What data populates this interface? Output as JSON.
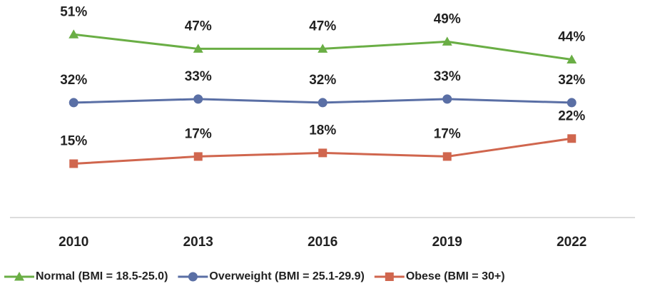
{
  "chart_data": {
    "type": "line",
    "categories": [
      "2010",
      "2013",
      "2016",
      "2019",
      "2022"
    ],
    "series": [
      {
        "name": "Normal (BMI = 18.5-25.0)",
        "color": "#6aae45",
        "marker": "triangle",
        "values": [
          51,
          47,
          47,
          49,
          44
        ],
        "value_labels": [
          "51%",
          "47%",
          "47%",
          "49%",
          "44%"
        ]
      },
      {
        "name": "Overweight (BMI = 25.1-29.9)",
        "color": "#5a6fa5",
        "marker": "circle",
        "values": [
          32,
          33,
          32,
          33,
          32
        ],
        "value_labels": [
          "32%",
          "33%",
          "32%",
          "33%",
          "32%"
        ]
      },
      {
        "name": "Obese (BMI = 30+)",
        "color": "#d0664e",
        "marker": "square",
        "values": [
          15,
          17,
          18,
          17,
          22
        ],
        "value_labels": [
          "15%",
          "17%",
          "18%",
          "17%",
          "22%"
        ]
      }
    ],
    "ylim": [
      0,
      60
    ],
    "legend": "bottom"
  }
}
